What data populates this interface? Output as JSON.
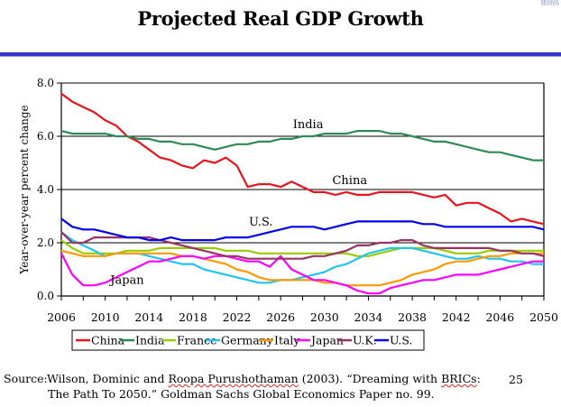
{
  "page": {
    "title": "Projected Real GDP Growth",
    "page_number": "25",
    "logo_text": "BROOKINGS INSTITUTION",
    "rule_color": "#3333cc"
  },
  "source": {
    "label": "Source:",
    "line1_a": "Wilson, Dominic and ",
    "line1_b": "Roopa Purushothaman",
    "line1_c": " (2003). “Dreaming with ",
    "line1_d": "BRICs",
    "line1_e": ":",
    "line2": "The Path To 2050.” Goldman Sachs Global Economics Paper no. 99."
  },
  "chart_data": {
    "type": "line",
    "title": "Projected Real GDP Growth",
    "xlabel": "",
    "ylabel": "Year-over-year percent change",
    "xlim": [
      2006,
      2050
    ],
    "ylim": [
      0.0,
      8.0
    ],
    "yticks": [
      "0.0",
      "2.0",
      "4.0",
      "6.0",
      "8.0"
    ],
    "ytick_values": [
      0,
      2,
      4,
      6,
      8
    ],
    "xticks": [
      "2006",
      "2010",
      "2014",
      "2018",
      "2022",
      "2026",
      "2030",
      "2034",
      "2038",
      "2042",
      "2046",
      "2050"
    ],
    "xtick_values": [
      2006,
      2010,
      2014,
      2018,
      2022,
      2026,
      2030,
      2034,
      2038,
      2042,
      2046,
      2050
    ],
    "grid": "horizontal",
    "legend": "bottom",
    "annotations": [
      {
        "text": "India",
        "x": 2028.5,
        "y": 6.3
      },
      {
        "text": "China",
        "x": 2032.3,
        "y": 4.2
      },
      {
        "text": "U.S.",
        "x": 2024.2,
        "y": 2.65
      },
      {
        "text": "Japan",
        "x": 2012.0,
        "y": 0.45
      }
    ],
    "x": [
      2006,
      2007,
      2008,
      2009,
      2010,
      2011,
      2012,
      2013,
      2014,
      2015,
      2016,
      2017,
      2018,
      2019,
      2020,
      2021,
      2022,
      2023,
      2024,
      2025,
      2026,
      2027,
      2028,
      2029,
      2030,
      2031,
      2032,
      2033,
      2034,
      2035,
      2036,
      2037,
      2038,
      2039,
      2040,
      2041,
      2042,
      2043,
      2044,
      2045,
      2046,
      2047,
      2048,
      2049,
      2050
    ],
    "series": [
      {
        "name": "China",
        "color": "#e8141e",
        "values": [
          7.6,
          7.3,
          7.1,
          6.9,
          6.6,
          6.4,
          6.0,
          5.8,
          5.5,
          5.2,
          5.1,
          4.9,
          4.8,
          5.1,
          5.0,
          5.2,
          4.9,
          4.1,
          4.2,
          4.2,
          4.1,
          4.3,
          4.1,
          3.9,
          3.9,
          3.8,
          3.9,
          3.8,
          3.8,
          3.9,
          3.9,
          3.9,
          3.9,
          3.8,
          3.7,
          3.8,
          3.4,
          3.5,
          3.5,
          3.3,
          3.1,
          2.8,
          2.9,
          2.8,
          2.7
        ]
      },
      {
        "name": "India",
        "color": "#2e8b57",
        "values": [
          6.2,
          6.1,
          6.1,
          6.1,
          6.1,
          6.0,
          6.0,
          5.9,
          5.9,
          5.8,
          5.8,
          5.7,
          5.7,
          5.6,
          5.5,
          5.6,
          5.7,
          5.7,
          5.8,
          5.8,
          5.9,
          5.9,
          6.0,
          6.0,
          6.1,
          6.1,
          6.1,
          6.2,
          6.2,
          6.2,
          6.1,
          6.1,
          6.0,
          5.9,
          5.8,
          5.8,
          5.7,
          5.6,
          5.5,
          5.4,
          5.4,
          5.3,
          5.2,
          5.1,
          5.1
        ]
      },
      {
        "name": "France",
        "color": "#99cc00",
        "values": [
          2.1,
          1.8,
          1.6,
          1.6,
          1.6,
          1.6,
          1.7,
          1.7,
          1.7,
          1.8,
          1.8,
          1.8,
          1.8,
          1.8,
          1.8,
          1.7,
          1.7,
          1.7,
          1.6,
          1.6,
          1.6,
          1.6,
          1.6,
          1.6,
          1.6,
          1.6,
          1.6,
          1.5,
          1.5,
          1.6,
          1.7,
          1.8,
          1.8,
          1.8,
          1.8,
          1.7,
          1.6,
          1.6,
          1.6,
          1.7,
          1.7,
          1.7,
          1.7,
          1.7,
          1.7
        ]
      },
      {
        "name": "Germany",
        "color": "#22c4ee",
        "values": [
          2.4,
          2.1,
          1.9,
          1.7,
          1.5,
          1.6,
          1.6,
          1.6,
          1.5,
          1.4,
          1.3,
          1.2,
          1.2,
          1.0,
          0.9,
          0.8,
          0.7,
          0.6,
          0.5,
          0.5,
          0.6,
          0.6,
          0.7,
          0.8,
          0.9,
          1.1,
          1.2,
          1.4,
          1.6,
          1.7,
          1.8,
          1.8,
          1.8,
          1.7,
          1.6,
          1.5,
          1.4,
          1.4,
          1.5,
          1.4,
          1.4,
          1.3,
          1.3,
          1.2,
          1.2
        ]
      },
      {
        "name": "Italy",
        "color": "#ff9900",
        "values": [
          1.7,
          1.6,
          1.5,
          1.5,
          1.5,
          1.6,
          1.6,
          1.6,
          1.6,
          1.6,
          1.6,
          1.5,
          1.5,
          1.4,
          1.3,
          1.2,
          1.0,
          0.9,
          0.7,
          0.6,
          0.6,
          0.6,
          0.6,
          0.6,
          0.5,
          0.5,
          0.4,
          0.4,
          0.4,
          0.4,
          0.5,
          0.6,
          0.8,
          0.9,
          1.0,
          1.2,
          1.3,
          1.3,
          1.4,
          1.5,
          1.5,
          1.6,
          1.6,
          1.6,
          1.6
        ]
      },
      {
        "name": "Japan",
        "color": "#ff00ff",
        "values": [
          1.6,
          0.8,
          0.4,
          0.4,
          0.5,
          0.7,
          0.9,
          1.1,
          1.3,
          1.3,
          1.4,
          1.5,
          1.5,
          1.4,
          1.5,
          1.5,
          1.4,
          1.3,
          1.3,
          1.1,
          1.5,
          1.0,
          0.8,
          0.6,
          0.6,
          0.5,
          0.4,
          0.2,
          0.1,
          0.1,
          0.3,
          0.4,
          0.5,
          0.6,
          0.6,
          0.7,
          0.8,
          0.8,
          0.8,
          0.9,
          1.0,
          1.1,
          1.2,
          1.3,
          1.3
        ]
      },
      {
        "name": "U.K.",
        "color": "#993366",
        "values": [
          2.4,
          2.0,
          2.0,
          2.2,
          2.2,
          2.2,
          2.2,
          2.2,
          2.2,
          2.1,
          2.0,
          1.9,
          1.8,
          1.7,
          1.6,
          1.5,
          1.5,
          1.4,
          1.4,
          1.4,
          1.4,
          1.4,
          1.4,
          1.5,
          1.5,
          1.6,
          1.7,
          1.9,
          1.9,
          2.0,
          2.0,
          2.1,
          2.1,
          1.9,
          1.8,
          1.8,
          1.8,
          1.8,
          1.8,
          1.8,
          1.7,
          1.7,
          1.6,
          1.6,
          1.5
        ]
      },
      {
        "name": "U.S.",
        "color": "#0000ee",
        "values": [
          2.9,
          2.6,
          2.5,
          2.5,
          2.4,
          2.3,
          2.2,
          2.2,
          2.1,
          2.1,
          2.2,
          2.1,
          2.1,
          2.1,
          2.1,
          2.2,
          2.2,
          2.2,
          2.3,
          2.4,
          2.5,
          2.6,
          2.6,
          2.6,
          2.5,
          2.6,
          2.7,
          2.8,
          2.8,
          2.8,
          2.8,
          2.8,
          2.8,
          2.7,
          2.7,
          2.6,
          2.6,
          2.6,
          2.6,
          2.6,
          2.6,
          2.6,
          2.6,
          2.6,
          2.5
        ]
      }
    ]
  }
}
